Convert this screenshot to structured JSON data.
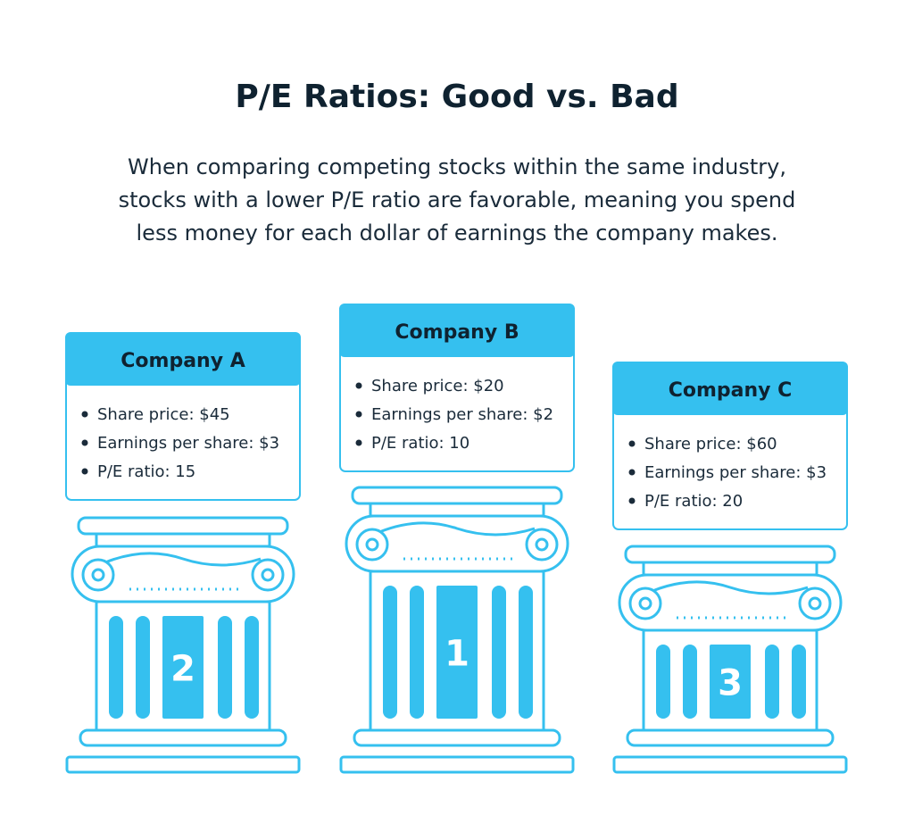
{
  "title": "P/E Ratios: Good vs. Bad",
  "description": [
    "When comparing competing stocks within the same industry,",
    "stocks with a lower P/E ratio are favorable, meaning you spend",
    "less money for each dollar of earnings the company makes."
  ],
  "companies": [
    {
      "name": "Company A",
      "rank": "2",
      "details": [
        "Share price: $45",
        "Earnings per share: $3",
        "P/E ratio: 15"
      ]
    },
    {
      "name": "Company B",
      "rank": "1",
      "details": [
        "Share price: $20",
        "Earnings per share: $2",
        "P/E ratio: 10"
      ]
    },
    {
      "name": "Company C",
      "rank": "3",
      "details": [
        "Share price: $60",
        "Earnings per share: $3",
        "P/E ratio: 20"
      ]
    }
  ]
}
